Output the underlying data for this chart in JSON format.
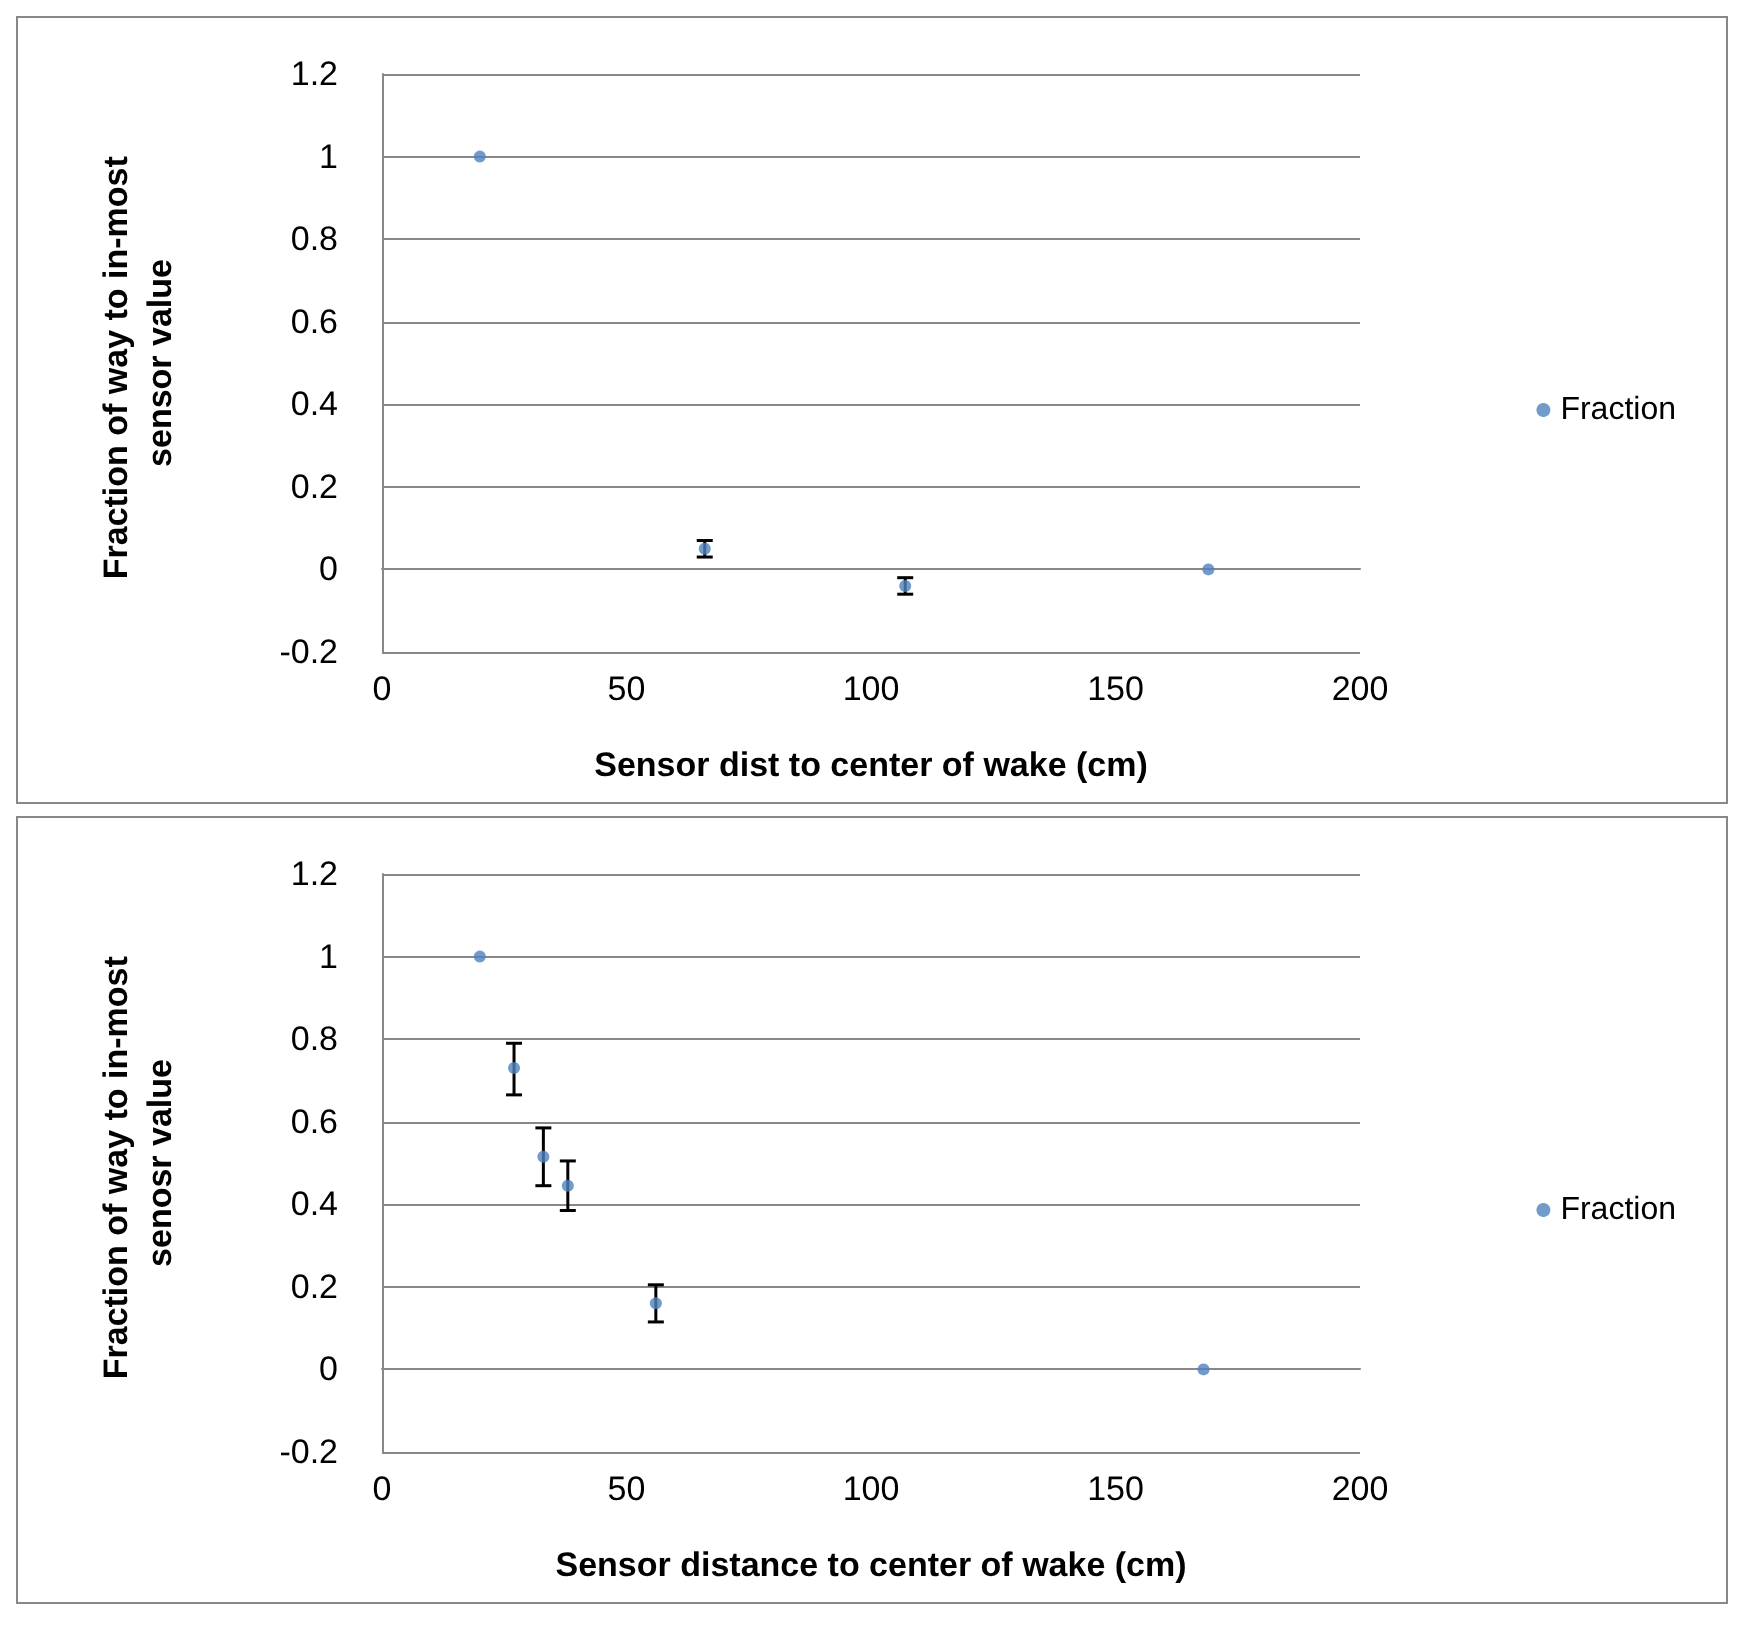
{
  "chart_data": [
    {
      "type": "scatter",
      "xlabel": "Sensor dist to center of wake (cm)",
      "ylabel": "Fraction of way to in-most sensor value",
      "x": [
        20,
        66,
        107,
        169
      ],
      "series": [
        {
          "name": "Fraction",
          "color": "#4f81bd",
          "values": [
            1,
            0.05,
            -0.04,
            0
          ],
          "errors": [
            null,
            0.02,
            0.02,
            null
          ]
        }
      ],
      "xlim": [
        0,
        200
      ],
      "xticks": [
        0,
        50,
        100,
        150,
        200
      ],
      "ylim": [
        -0.2,
        1.2
      ],
      "yticks": [
        -0.2,
        0,
        0.2,
        0.4,
        0.6,
        0.8,
        1,
        1.2
      ],
      "grid": "y",
      "legend": "right",
      "marker": "circle"
    },
    {
      "type": "scatter",
      "xlabel": "Sensor distance to center of wake (cm)",
      "ylabel": "Fraction of way to in-most senosr value",
      "x": [
        20,
        27,
        33,
        38,
        56,
        168
      ],
      "series": [
        {
          "name": "Fraction",
          "color": "#4f81bd",
          "values": [
            1,
            0.73,
            0.515,
            0.445,
            0.16,
            0
          ],
          "errors": [
            null,
            [
              0.665,
              0.79
            ],
            [
              0.445,
              0.585
            ],
            [
              0.385,
              0.505
            ],
            [
              0.115,
              0.205
            ],
            null
          ]
        }
      ],
      "xlim": [
        0,
        200
      ],
      "xticks": [
        0,
        50,
        100,
        150,
        200
      ],
      "ylim": [
        -0.2,
        1.2
      ],
      "yticks": [
        -0.2,
        0,
        0.2,
        0.4,
        0.6,
        0.8,
        1,
        1.2
      ],
      "grid": "y",
      "legend": "right",
      "marker": "circle"
    }
  ]
}
